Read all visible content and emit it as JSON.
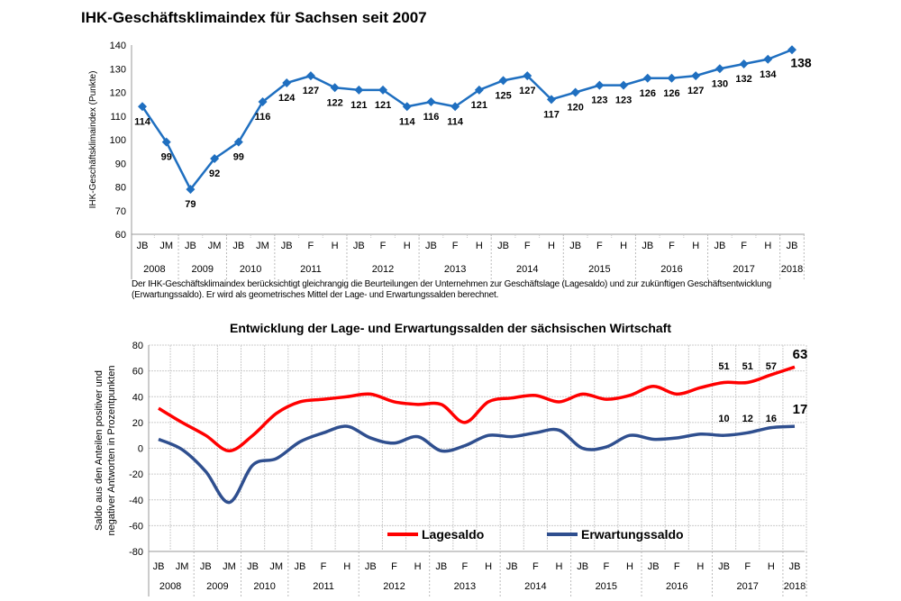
{
  "chart_data": [
    {
      "type": "line",
      "title": "IHK-Geschäftsklimaindex für Sachsen seit 2007",
      "ylabel": "IHK-Geschäftsklimaindex (Punkte)",
      "xlabel": "",
      "ylim": [
        60,
        140
      ],
      "yticks": [
        60,
        70,
        80,
        90,
        100,
        110,
        120,
        130,
        140
      ],
      "grid": false,
      "categories": [
        "JB",
        "JM",
        "JB",
        "JM",
        "JB",
        "JM",
        "JB",
        "F",
        "H",
        "JB",
        "F",
        "H",
        "JB",
        "F",
        "H",
        "JB",
        "F",
        "H",
        "JB",
        "F",
        "H",
        "JB",
        "F",
        "H",
        "JB",
        "F",
        "H",
        "JB"
      ],
      "years": [
        {
          "label": "2008",
          "span": 2
        },
        {
          "label": "2009",
          "span": 2
        },
        {
          "label": "2010",
          "span": 2
        },
        {
          "label": "2011",
          "span": 3
        },
        {
          "label": "2012",
          "span": 3
        },
        {
          "label": "2013",
          "span": 3
        },
        {
          "label": "2014",
          "span": 3
        },
        {
          "label": "2015",
          "span": 3
        },
        {
          "label": "2016",
          "span": 3
        },
        {
          "label": "2017",
          "span": 3
        },
        {
          "label": "2018",
          "span": 1
        }
      ],
      "series": [
        {
          "values": [
            114,
            99,
            79,
            92,
            99,
            116,
            124,
            127,
            122,
            121,
            121,
            114,
            116,
            114,
            121,
            125,
            127,
            117,
            120,
            123,
            123,
            126,
            126,
            127,
            130,
            132,
            134,
            138
          ],
          "color": "#1f6fc0",
          "marker": "diamond"
        }
      ],
      "data_labels": [
        "114",
        "99",
        "79",
        "92",
        "99",
        "116",
        "124",
        "127",
        "122",
        "121",
        "121",
        "114",
        "116",
        "114",
        "121",
        "125",
        "127",
        "117",
        "120",
        "123",
        "123",
        "126",
        "126",
        "127",
        "130",
        "132",
        "134",
        "138"
      ],
      "note": "Der IHK-Geschäftsklimaindex berücksichtigt gleichrangig die Beurteilungen der Unternehmen zur Geschäftslage (Lagesaldo) und zur zukünftigen Geschäftsentwicklung (Erwartungssaldo). Er wird als geometrisches Mittel der Lage- und Erwartungssalden berechnet."
    },
    {
      "type": "line",
      "title": "Entwicklung der Lage- und Erwartungssalden der sächsischen Wirtschaft",
      "ylabel": "Saldo aus den Anteilen positiver und negativer Antworten in Prozentpunkten",
      "ylim": [
        -80,
        80
      ],
      "yticks": [
        -80,
        -60,
        -40,
        -20,
        0,
        20,
        40,
        60,
        80
      ],
      "grid": true,
      "legend": "bottom",
      "categories": [
        "JB",
        "JM",
        "JB",
        "JM",
        "JB",
        "JM",
        "JB",
        "F",
        "H",
        "JB",
        "F",
        "H",
        "JB",
        "F",
        "H",
        "JB",
        "F",
        "H",
        "JB",
        "F",
        "H",
        "JB",
        "F",
        "H",
        "JB",
        "F",
        "H",
        "JB"
      ],
      "years": [
        {
          "label": "2008",
          "span": 2
        },
        {
          "label": "2009",
          "span": 2
        },
        {
          "label": "2010",
          "span": 2
        },
        {
          "label": "2011",
          "span": 3
        },
        {
          "label": "2012",
          "span": 3
        },
        {
          "label": "2013",
          "span": 3
        },
        {
          "label": "2014",
          "span": 3
        },
        {
          "label": "2015",
          "span": 3
        },
        {
          "label": "2016",
          "span": 3
        },
        {
          "label": "2017",
          "span": 3
        },
        {
          "label": "2018",
          "span": 1
        }
      ],
      "series": [
        {
          "name": "Lagesaldo",
          "color": "#ff0000",
          "values": [
            31,
            20,
            10,
            -2,
            10,
            27,
            36,
            38,
            40,
            42,
            36,
            34,
            34,
            20,
            36,
            39,
            41,
            36,
            42,
            38,
            41,
            48,
            42,
            47,
            51,
            51,
            57,
            63
          ],
          "labels": {
            "24": "51",
            "25": "51",
            "26": "57",
            "27": "63"
          }
        },
        {
          "name": "Erwartungssaldo",
          "color": "#2f4f8f",
          "values": [
            7,
            -1,
            -18,
            -42,
            -13,
            -8,
            5,
            12,
            17,
            8,
            4,
            9,
            -2,
            2,
            10,
            9,
            12,
            14,
            0,
            1,
            10,
            7,
            8,
            11,
            10,
            12,
            16,
            17
          ],
          "labels": {
            "24": "10",
            "25": "12",
            "26": "16",
            "27": "17"
          }
        }
      ]
    }
  ]
}
